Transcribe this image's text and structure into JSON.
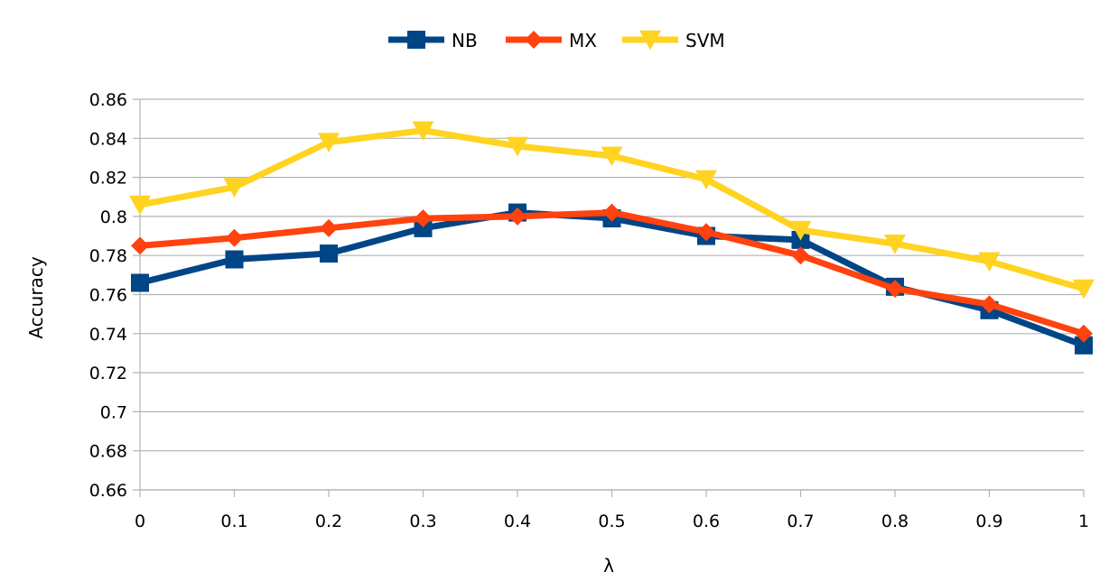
{
  "chart_data": {
    "type": "line",
    "xlabel": "λ",
    "ylabel": "Accuracy",
    "x": [
      0,
      0.1,
      0.2,
      0.3,
      0.4,
      0.5,
      0.6,
      0.7,
      0.8,
      0.9,
      1
    ],
    "x_tick_labels": [
      "0",
      "0.1",
      "0.2",
      "0.3",
      "0.4",
      "0.5",
      "0.6",
      "0.7",
      "0.8",
      "0.9",
      "1"
    ],
    "y_tick_labels": [
      "0.66",
      "0.68",
      "0.7",
      "0.72",
      "0.74",
      "0.76",
      "0.78",
      "0.8",
      "0.82",
      "0.84",
      "0.86"
    ],
    "ylim": [
      0.66,
      0.86
    ],
    "xlim": [
      0,
      1
    ],
    "grid": "horizontal",
    "legend_position": "top-center",
    "series": [
      {
        "name": "NB",
        "color": "#004586",
        "marker": "square",
        "values": [
          0.766,
          0.778,
          0.781,
          0.794,
          0.802,
          0.799,
          0.79,
          0.788,
          0.764,
          0.752,
          0.734
        ]
      },
      {
        "name": "MX",
        "color": "#ff420e",
        "marker": "diamond",
        "values": [
          0.785,
          0.789,
          0.794,
          0.799,
          0.8,
          0.802,
          0.792,
          0.78,
          0.763,
          0.755,
          0.74
        ]
      },
      {
        "name": "SVM",
        "color": "#ffd320",
        "marker": "triangle-down",
        "values": [
          0.806,
          0.815,
          0.838,
          0.844,
          0.836,
          0.831,
          0.819,
          0.793,
          0.786,
          0.777,
          0.763
        ]
      }
    ]
  }
}
